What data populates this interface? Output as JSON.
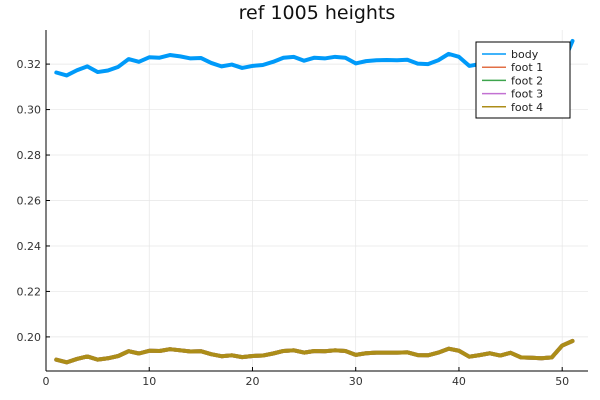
{
  "chart_data": {
    "type": "line",
    "title": "ref 1005 heights",
    "xlabel": "",
    "ylabel": "",
    "xlim": [
      0,
      52.5
    ],
    "ylim": [
      0.185,
      0.335
    ],
    "x_ticks": [
      0,
      10,
      20,
      30,
      40,
      50
    ],
    "y_ticks": [
      0.2,
      0.22,
      0.24,
      0.26,
      0.28,
      0.3,
      0.32
    ],
    "x_tick_labels": [
      "0",
      "10",
      "20",
      "30",
      "40",
      "50"
    ],
    "y_tick_labels": [
      "0.20",
      "0.22",
      "0.24",
      "0.26",
      "0.28",
      "0.30",
      "0.32"
    ],
    "grid": true,
    "legend_position": "top-right",
    "x": [
      1,
      2,
      3,
      4,
      5,
      6,
      7,
      8,
      9,
      10,
      11,
      12,
      13,
      14,
      15,
      16,
      17,
      18,
      19,
      20,
      21,
      22,
      23,
      24,
      25,
      26,
      27,
      28,
      29,
      30,
      31,
      32,
      33,
      34,
      35,
      36,
      37,
      38,
      39,
      40,
      41,
      42,
      43,
      44,
      45,
      46,
      47,
      48,
      49,
      50,
      51
    ],
    "series": [
      {
        "name": "body",
        "color": "#009af9",
        "values": [
          0.3163,
          0.315,
          0.3173,
          0.319,
          0.3165,
          0.3172,
          0.3188,
          0.3222,
          0.321,
          0.323,
          0.3228,
          0.324,
          0.3234,
          0.3225,
          0.3227,
          0.3205,
          0.319,
          0.3198,
          0.3183,
          0.3192,
          0.3196,
          0.321,
          0.3228,
          0.3232,
          0.3215,
          0.3228,
          0.3225,
          0.3232,
          0.3228,
          0.3203,
          0.3213,
          0.3217,
          0.3218,
          0.3217,
          0.3219,
          0.3202,
          0.32,
          0.3217,
          0.3245,
          0.3232,
          0.3192,
          0.32,
          0.3205,
          0.32,
          0.321,
          0.3195,
          0.3195,
          0.319,
          0.3192,
          0.3195,
          0.3302
        ]
      },
      {
        "name": "foot 1",
        "color": "#e26f46",
        "values": [
          0.19,
          0.1888,
          0.1903,
          0.1914,
          0.19,
          0.1906,
          0.1916,
          0.1937,
          0.1927,
          0.1939,
          0.1938,
          0.1946,
          0.1941,
          0.1936,
          0.1937,
          0.1924,
          0.1915,
          0.1919,
          0.1911,
          0.1916,
          0.1918,
          0.1927,
          0.1938,
          0.1941,
          0.1931,
          0.1938,
          0.1937,
          0.1941,
          0.1938,
          0.1921,
          0.1928,
          0.1931,
          0.1931,
          0.1931,
          0.1932,
          0.192,
          0.1919,
          0.1931,
          0.1948,
          0.1939,
          0.1913,
          0.192,
          0.1928,
          0.1918,
          0.193,
          0.191,
          0.1908,
          0.1906,
          0.191,
          0.1962,
          0.1982
        ]
      },
      {
        "name": "foot 2",
        "color": "#3da44d",
        "values": [
          0.19,
          0.1888,
          0.1903,
          0.1914,
          0.19,
          0.1906,
          0.1916,
          0.1937,
          0.1927,
          0.1939,
          0.1938,
          0.1946,
          0.1941,
          0.1936,
          0.1937,
          0.1924,
          0.1915,
          0.1919,
          0.1911,
          0.1916,
          0.1918,
          0.1927,
          0.1938,
          0.1941,
          0.1931,
          0.1938,
          0.1937,
          0.1941,
          0.1938,
          0.1921,
          0.1928,
          0.1931,
          0.1931,
          0.1931,
          0.1932,
          0.192,
          0.1919,
          0.1931,
          0.1948,
          0.1939,
          0.1913,
          0.192,
          0.1928,
          0.1918,
          0.193,
          0.191,
          0.1908,
          0.1906,
          0.191,
          0.1962,
          0.1982
        ]
      },
      {
        "name": "foot 3",
        "color": "#c271d2",
        "values": [
          0.19,
          0.1888,
          0.1903,
          0.1914,
          0.19,
          0.1906,
          0.1916,
          0.1937,
          0.1927,
          0.1939,
          0.1938,
          0.1946,
          0.1941,
          0.1936,
          0.1937,
          0.1924,
          0.1915,
          0.1919,
          0.1911,
          0.1916,
          0.1918,
          0.1927,
          0.1938,
          0.1941,
          0.1931,
          0.1938,
          0.1937,
          0.1941,
          0.1938,
          0.1921,
          0.1928,
          0.1931,
          0.1931,
          0.1931,
          0.1932,
          0.192,
          0.1919,
          0.1931,
          0.1948,
          0.1939,
          0.1913,
          0.192,
          0.1928,
          0.1918,
          0.193,
          0.191,
          0.1908,
          0.1906,
          0.191,
          0.1962,
          0.1982
        ]
      },
      {
        "name": "foot 4",
        "color": "#ac8d18",
        "values": [
          0.19,
          0.1888,
          0.1903,
          0.1914,
          0.19,
          0.1906,
          0.1916,
          0.1937,
          0.1927,
          0.1939,
          0.1938,
          0.1946,
          0.1941,
          0.1936,
          0.1937,
          0.1924,
          0.1915,
          0.1919,
          0.1911,
          0.1916,
          0.1918,
          0.1927,
          0.1938,
          0.1941,
          0.1931,
          0.1938,
          0.1937,
          0.1941,
          0.1938,
          0.1921,
          0.1928,
          0.1931,
          0.1931,
          0.1931,
          0.1932,
          0.192,
          0.1919,
          0.1931,
          0.1948,
          0.1939,
          0.1913,
          0.192,
          0.1928,
          0.1918,
          0.193,
          0.191,
          0.1908,
          0.1906,
          0.191,
          0.1962,
          0.1982
        ]
      }
    ]
  }
}
